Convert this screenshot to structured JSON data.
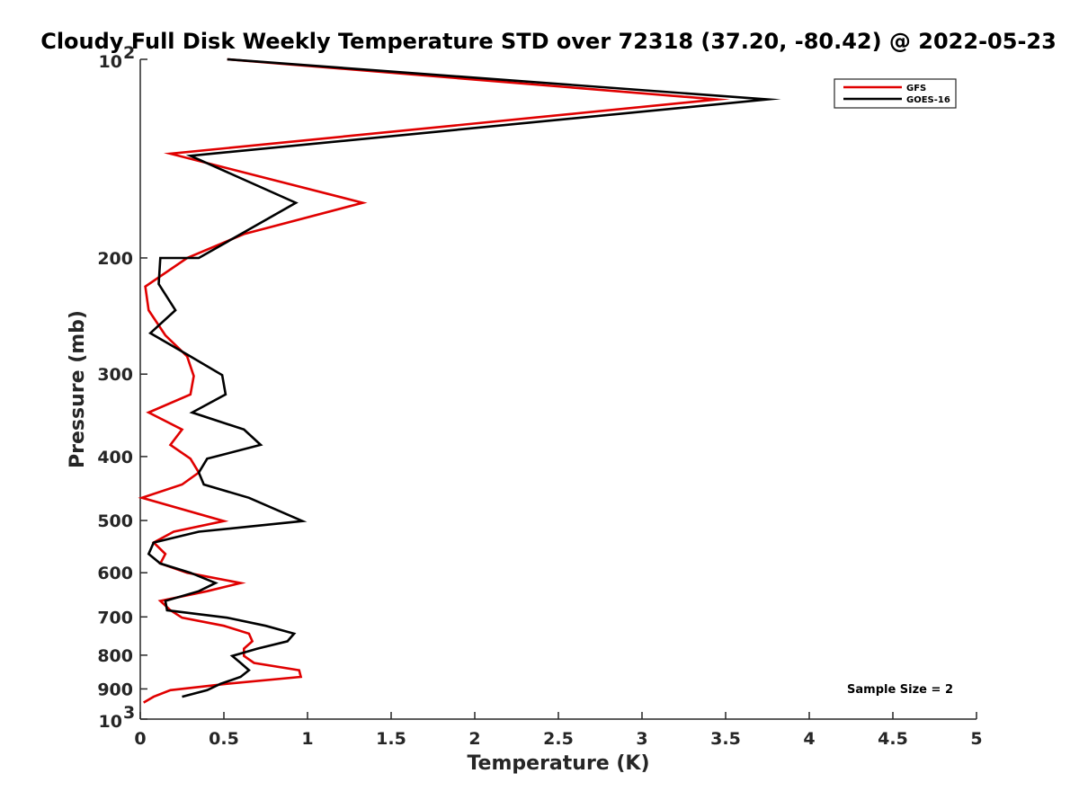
{
  "chart_data": {
    "type": "line",
    "title": "Cloudy Full Disk Weekly Temperature STD over 72318 (37.20, -80.42) @ 2022-05-23",
    "xlabel": "Temperature (K)",
    "ylabel": "Pressure (mb)",
    "xlim": [
      0,
      5
    ],
    "ylim": [
      100,
      1000
    ],
    "yscale": "log",
    "y_reversed": true,
    "xticks": [
      0,
      0.5,
      1,
      1.5,
      2,
      2.5,
      3,
      3.5,
      4,
      4.5,
      5
    ],
    "xtick_labels": [
      "0",
      "0.5",
      "1",
      "1.5",
      "2",
      "2.5",
      "3",
      "3.5",
      "4",
      "4.5",
      "5"
    ],
    "yticks": [
      100,
      200,
      300,
      400,
      500,
      600,
      700,
      800,
      900,
      1000
    ],
    "ytick_labels": [
      {
        "base": "10",
        "exp": "2"
      },
      {
        "base": "200",
        "exp": ""
      },
      {
        "base": "300",
        "exp": ""
      },
      {
        "base": "400",
        "exp": ""
      },
      {
        "base": "500",
        "exp": ""
      },
      {
        "base": "600",
        "exp": ""
      },
      {
        "base": "700",
        "exp": ""
      },
      {
        "base": "800",
        "exp": ""
      },
      {
        "base": "900",
        "exp": ""
      },
      {
        "base": "10",
        "exp": "3"
      }
    ],
    "legend_position": "top-right",
    "annotation": "Sample Size = 2",
    "series": [
      {
        "name": "GFS",
        "color": "#e00000",
        "points": [
          [
            0.52,
            100
          ],
          [
            3.45,
            115
          ],
          [
            0.18,
            139
          ],
          [
            1.33,
            165
          ],
          [
            0.62,
            184
          ],
          [
            0.28,
            200
          ],
          [
            0.03,
            221
          ],
          [
            0.05,
            240
          ],
          [
            0.15,
            262
          ],
          [
            0.28,
            282
          ],
          [
            0.32,
            302
          ],
          [
            0.3,
            322
          ],
          [
            0.05,
            343
          ],
          [
            0.25,
            364
          ],
          [
            0.18,
            384
          ],
          [
            0.3,
            403
          ],
          [
            0.35,
            423
          ],
          [
            0.25,
            441
          ],
          [
            0.01,
            462
          ],
          [
            0.5,
            501
          ],
          [
            0.2,
            520
          ],
          [
            0.08,
            540
          ],
          [
            0.15,
            562
          ],
          [
            0.12,
            581
          ],
          [
            0.28,
            600
          ],
          [
            0.6,
            622
          ],
          [
            0.4,
            640
          ],
          [
            0.12,
            662
          ],
          [
            0.18,
            684
          ],
          [
            0.25,
            702
          ],
          [
            0.5,
            722
          ],
          [
            0.65,
            742
          ],
          [
            0.67,
            762
          ],
          [
            0.62,
            782
          ],
          [
            0.62,
            802
          ],
          [
            0.68,
            822
          ],
          [
            0.95,
            843
          ],
          [
            0.96,
            863
          ],
          [
            0.52,
            884
          ],
          [
            0.18,
            904
          ],
          [
            0.08,
            925
          ],
          [
            0.02,
            944
          ]
        ]
      },
      {
        "name": "GOES-16",
        "color": "#000000",
        "points": [
          [
            0.52,
            100
          ],
          [
            3.75,
            115
          ],
          [
            0.3,
            140
          ],
          [
            0.93,
            165
          ],
          [
            0.35,
            200
          ],
          [
            0.12,
            200
          ],
          [
            0.11,
            219
          ],
          [
            0.21,
            240
          ],
          [
            0.06,
            260
          ],
          [
            0.3,
            282
          ],
          [
            0.49,
            301
          ],
          [
            0.51,
            322
          ],
          [
            0.31,
            343
          ],
          [
            0.62,
            364
          ],
          [
            0.72,
            384
          ],
          [
            0.4,
            403
          ],
          [
            0.35,
            423
          ],
          [
            0.38,
            441
          ],
          [
            0.65,
            462
          ],
          [
            0.97,
            501
          ],
          [
            0.35,
            520
          ],
          [
            0.08,
            540
          ],
          [
            0.05,
            562
          ],
          [
            0.12,
            581
          ],
          [
            0.3,
            600
          ],
          [
            0.45,
            622
          ],
          [
            0.35,
            640
          ],
          [
            0.15,
            662
          ],
          [
            0.16,
            684
          ],
          [
            0.52,
            702
          ],
          [
            0.75,
            722
          ],
          [
            0.92,
            742
          ],
          [
            0.88,
            762
          ],
          [
            0.7,
            782
          ],
          [
            0.55,
            802
          ],
          [
            0.6,
            822
          ],
          [
            0.65,
            843
          ],
          [
            0.6,
            863
          ],
          [
            0.48,
            884
          ],
          [
            0.4,
            904
          ],
          [
            0.25,
            925
          ]
        ]
      }
    ]
  }
}
